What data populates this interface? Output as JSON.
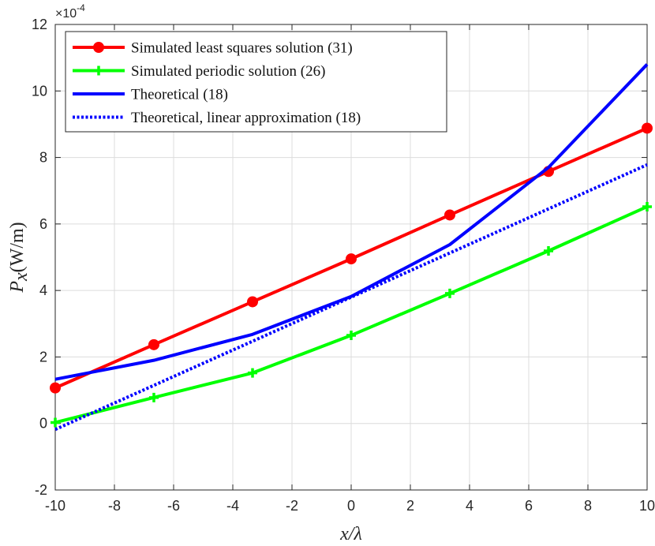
{
  "chart_data": {
    "type": "line",
    "x": [
      -10,
      -6.667,
      -3.333,
      0,
      3.333,
      6.667,
      10
    ],
    "xlim": [
      -10,
      10
    ],
    "ylim": [
      -2,
      12
    ],
    "x_ticks": [
      "-10",
      "-8",
      "-6",
      "-4",
      "-2",
      "0",
      "2",
      "4",
      "6",
      "8",
      "10"
    ],
    "y_ticks": [
      "-2",
      "0",
      "2",
      "4",
      "6",
      "8",
      "10",
      "12"
    ],
    "y_multiplier": "×10",
    "y_multiplier_exponent": "-4",
    "xlabel": "x/λ",
    "ylabel_var": "P",
    "ylabel_sub": "x",
    "ylabel_unit": "(W/m)",
    "grid": true,
    "legend_position": "top-left",
    "series": [
      {
        "name": "Simulated least squares solution (31)",
        "color": "#ff0000",
        "line_style": "solid",
        "marker": "circle",
        "x": [
          -10,
          -6.667,
          -3.333,
          0,
          3.333,
          6.667,
          10
        ],
        "values": [
          1.07,
          2.37,
          3.66,
          4.95,
          6.27,
          7.58,
          8.88
        ]
      },
      {
        "name": "Simulated periodic solution (26)",
        "color": "#00ff00",
        "line_style": "solid",
        "marker": "plus",
        "x": [
          -10,
          -6.667,
          -3.333,
          0,
          3.333,
          6.667,
          10
        ],
        "values": [
          0.03,
          0.78,
          1.52,
          2.65,
          3.91,
          5.19,
          6.52
        ]
      },
      {
        "name": "Theoretical (18)",
        "color": "#0000ff",
        "line_style": "solid",
        "marker": "none",
        "x": [
          -10,
          -6.667,
          -3.333,
          0,
          3.333,
          6.667,
          10
        ],
        "values": [
          1.33,
          1.9,
          2.68,
          3.82,
          5.38,
          7.7,
          10.8
        ]
      },
      {
        "name": "Theoretical, linear approximation (18)",
        "color": "#0000ff",
        "line_style": "dotted",
        "marker": "none",
        "x": [
          -10,
          10
        ],
        "values": [
          -0.18,
          7.78
        ]
      }
    ]
  }
}
